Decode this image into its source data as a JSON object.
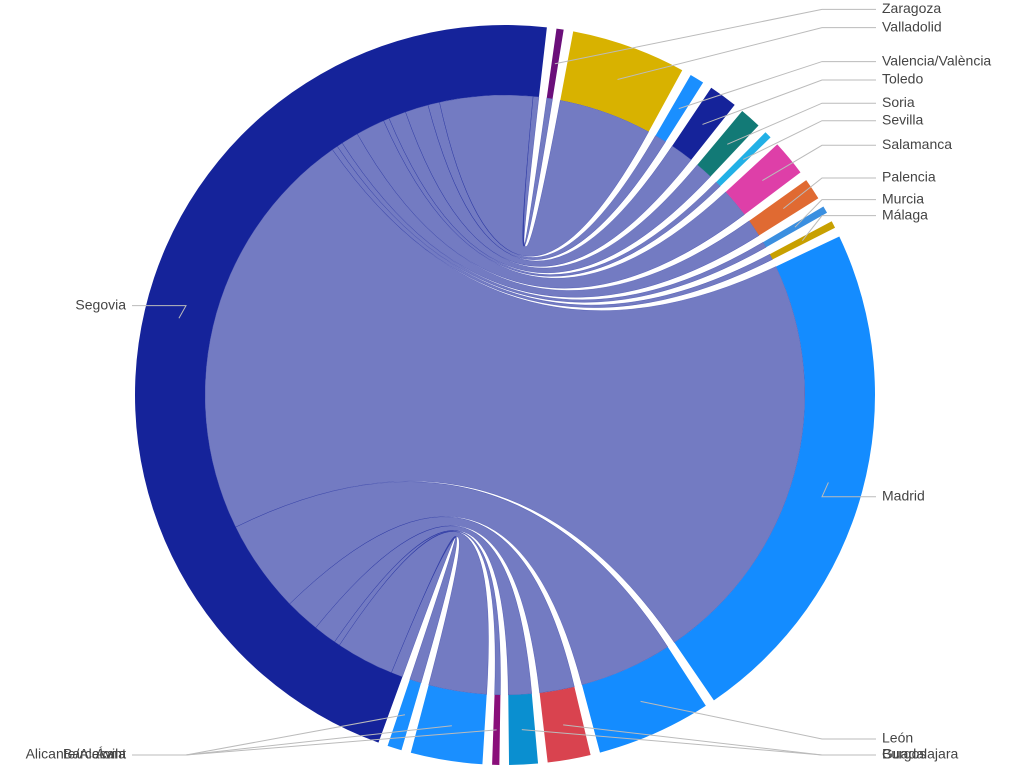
{
  "chart_data": {
    "type": "dependencywheel",
    "nodes": [
      {
        "name": "Segovia",
        "color": "#15239a"
      },
      {
        "name": "Zaragoza",
        "color": "#6b0f7a"
      },
      {
        "name": "Valladolid",
        "color": "#d8b200"
      },
      {
        "name": "Valencia/València",
        "color": "#1a8fff"
      },
      {
        "name": "Toledo",
        "color": "#15239a"
      },
      {
        "name": "Soria",
        "color": "#127a76"
      },
      {
        "name": "Sevilla",
        "color": "#22b0e6"
      },
      {
        "name": "Salamanca",
        "color": "#de3fa8"
      },
      {
        "name": "Palencia",
        "color": "#e06a32"
      },
      {
        "name": "Murcia",
        "color": "#3a8fe0"
      },
      {
        "name": "Málaga",
        "color": "#c8a000"
      },
      {
        "name": "Madrid",
        "color": "#148cff"
      },
      {
        "name": "León",
        "color": "#148cff"
      },
      {
        "name": "Guadalajara",
        "color": "#d9434f"
      },
      {
        "name": "Burgos",
        "color": "#0a8fd0"
      },
      {
        "name": "Barcelona",
        "color": "#8a0f7a"
      },
      {
        "name": "Ávila",
        "color": "#1a8fff"
      },
      {
        "name": "Alicante/Alacant",
        "color": "#1a8fff"
      }
    ],
    "links": [
      {
        "from": "Segovia",
        "to": "Zaragoza",
        "weight": 0.5
      },
      {
        "from": "Segovia",
        "to": "Valladolid",
        "weight": 8
      },
      {
        "from": "Segovia",
        "to": "Valencia/València",
        "weight": 1
      },
      {
        "from": "Segovia",
        "to": "Toledo",
        "weight": 2
      },
      {
        "from": "Segovia",
        "to": "Soria",
        "weight": 1.5
      },
      {
        "from": "Segovia",
        "to": "Sevilla",
        "weight": 0.5
      },
      {
        "from": "Segovia",
        "to": "Salamanca",
        "weight": 2.5
      },
      {
        "from": "Segovia",
        "to": "Palencia",
        "weight": 1.5
      },
      {
        "from": "Segovia",
        "to": "Murcia",
        "weight": 0.5
      },
      {
        "from": "Segovia",
        "to": "Málaga",
        "weight": 0.5
      },
      {
        "from": "Segovia",
        "to": "Madrid",
        "weight": 36
      },
      {
        "from": "Segovia",
        "to": "León",
        "weight": 8
      },
      {
        "from": "Segovia",
        "to": "Guadalajara",
        "weight": 3
      },
      {
        "from": "Segovia",
        "to": "Burgos",
        "weight": 2
      },
      {
        "from": "Segovia",
        "to": "Barcelona",
        "weight": 0.5
      },
      {
        "from": "Segovia",
        "to": "Ávila",
        "weight": 5
      },
      {
        "from": "Segovia",
        "to": "Alicante/Alacant",
        "weight": 1
      }
    ]
  }
}
